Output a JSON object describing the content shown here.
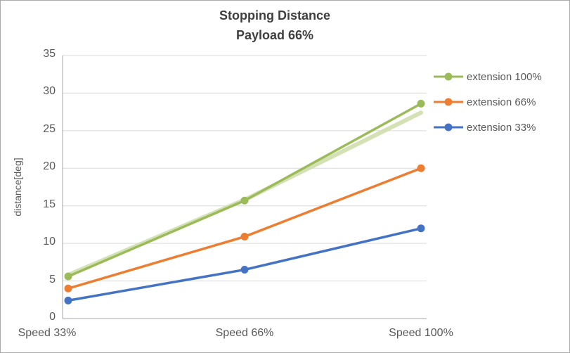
{
  "chart_data": {
    "type": "line",
    "title": "Stopping Distance",
    "subtitle": "Payload 66%",
    "xlabel": "",
    "ylabel": "distance[deg]",
    "categories": [
      "Speed 33%",
      "Speed 66%",
      "Speed 100%"
    ],
    "ylim": [
      0,
      35
    ],
    "ytick_step": 5,
    "grid": true,
    "legend_position": "right",
    "series": [
      {
        "name": "extension 100%",
        "color": "#9BBB59",
        "values": [
          5.6,
          15.7,
          28.6
        ]
      },
      {
        "name": "extension 66%",
        "color": "#ED7D31",
        "values": [
          4.0,
          10.9,
          20.0
        ]
      },
      {
        "name": "extension 33%",
        "color": "#4472C4",
        "values": [
          2.4,
          6.5,
          12.0
        ]
      }
    ],
    "halo": {
      "comment_visible_as": "faint light-green duplicate trace under the extension 100% line",
      "color": "#CBDCA8",
      "values": [
        5.8,
        15.8,
        27.4
      ],
      "width": 6
    },
    "colors": {
      "gridline": "#D9D9D9",
      "axis_line": "#A6A6A6",
      "title_text": "#3F3F3F",
      "tick_text": "#595959"
    }
  }
}
